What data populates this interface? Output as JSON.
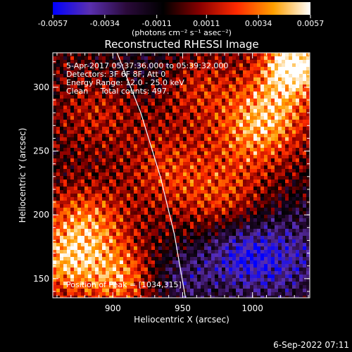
{
  "chart_data": {
    "type": "heatmap",
    "title": "Reconstructed RHESSI Image",
    "xlabel": "Heliocentric X (arcsec)",
    "ylabel": "Heliocentric Y (arcsec)",
    "xlim": [
      857,
      1041
    ],
    "ylim": [
      135,
      327
    ],
    "x_ticks": [
      900,
      950,
      1000
    ],
    "y_ticks": [
      150,
      200,
      250,
      300
    ],
    "x_tick_labels": [
      "900",
      "950",
      "1000"
    ],
    "y_tick_labels": [
      "150",
      "200",
      "250",
      "300"
    ],
    "colorbar": {
      "min": -0.0057,
      "max": 0.0057,
      "tick_values": [
        -0.0057,
        -0.0034,
        -0.0011,
        0.0011,
        0.0034,
        0.0057
      ],
      "tick_labels": [
        "-0.0057",
        "-0.0034",
        "-0.0011",
        "0.0011",
        "0.0034",
        "0.0057"
      ],
      "unit_label": "(photons cm⁻² s⁻¹ asec⁻²)",
      "colormap_stops": [
        "#0000ff",
        "#5a2fb0",
        "#2a0a3a",
        "#000000",
        "#8a0000",
        "#ff2a00",
        "#ffa000",
        "#ffffff"
      ]
    },
    "annotations": [
      "5-Apr-2017 05:37:36.000 to 05:39:32.000",
      "Detectors: 3F 6F 8F, Att 0",
      "Energy Range: 12.0 - 25.0 keV",
      "Clean     Total counts: 497.",
      "Position of Peak = [1034,315]"
    ],
    "limb": [
      [
        903,
        327
      ],
      [
        920,
        280
      ],
      [
        934,
        230
      ],
      [
        944,
        185
      ],
      [
        952,
        135
      ]
    ],
    "peak": [
      1034,
      315
    ],
    "grid": false
  },
  "footer": {
    "date": "6-Sep-2022 07:11"
  }
}
